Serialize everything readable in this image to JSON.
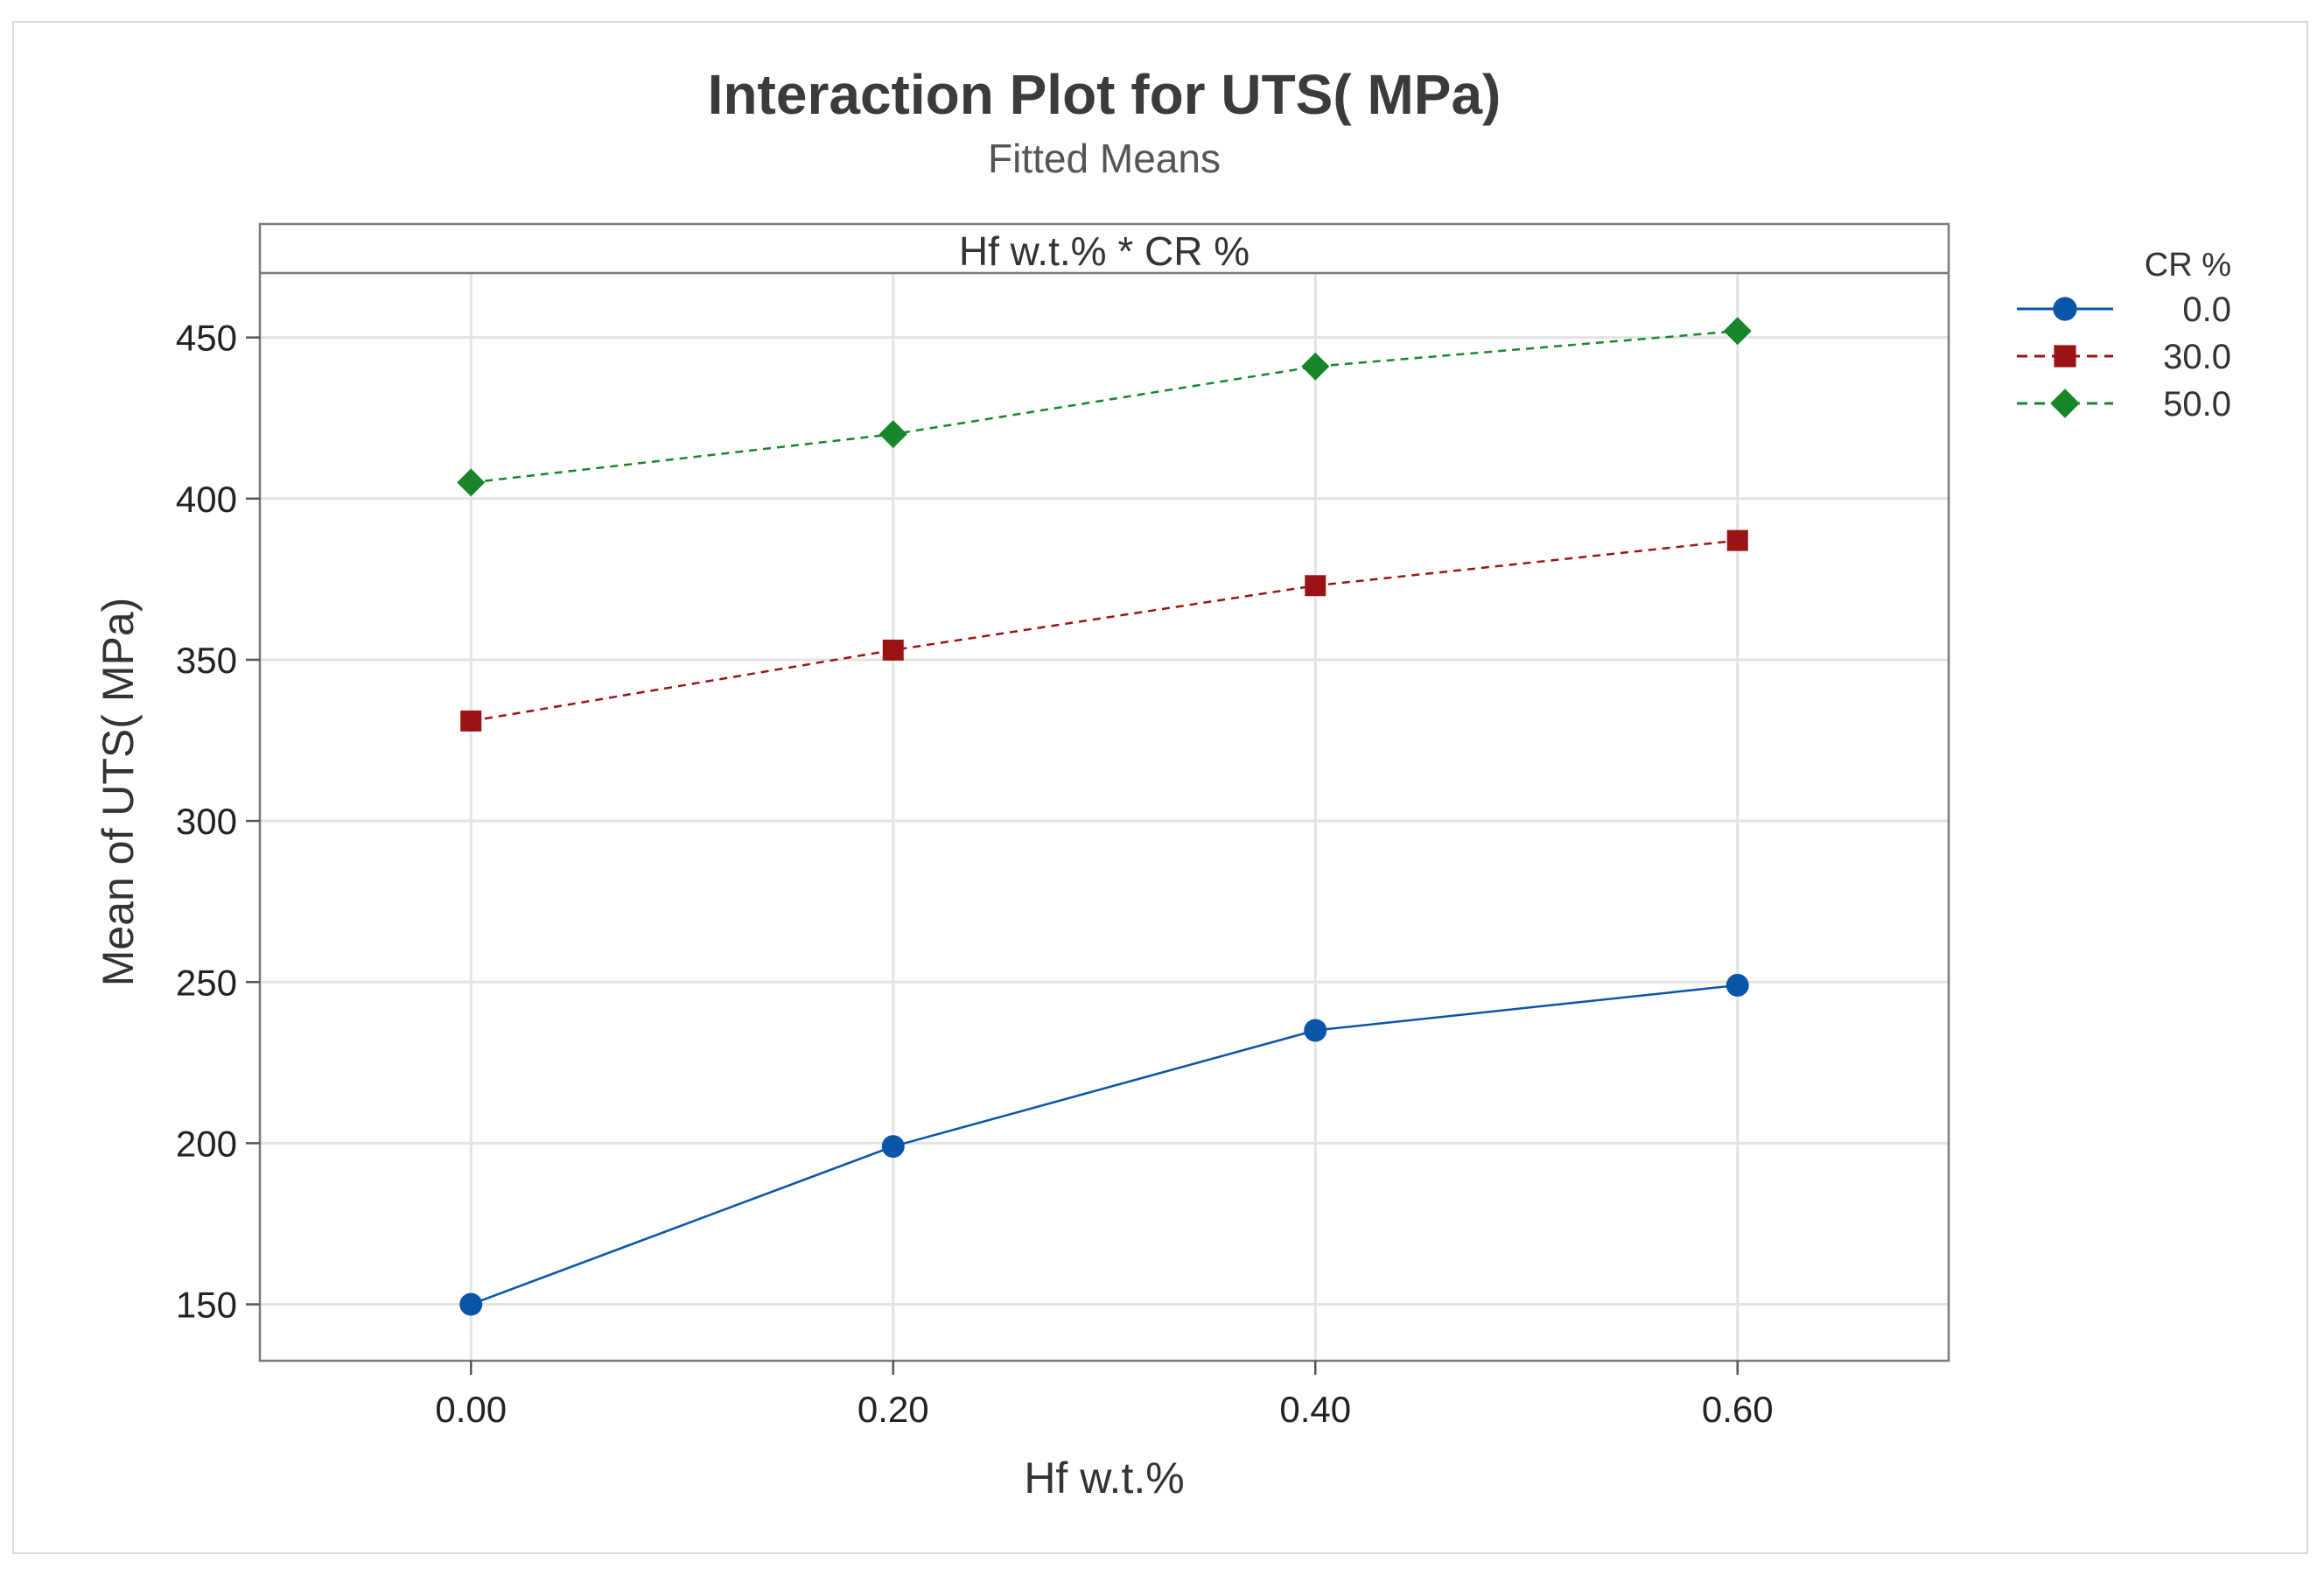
{
  "chart_data": {
    "type": "line",
    "title": "Interaction Plot for UTS( MPa)",
    "subtitle": "Fitted Means",
    "panel_label": "Hf w.t.% * CR %",
    "xlabel": "Hf w.t.%",
    "ylabel": "Mean of UTS( MPa)",
    "x": [
      0.0,
      0.2,
      0.4,
      0.6
    ],
    "x_tick_labels": [
      "0.00",
      "0.20",
      "0.40",
      "0.60"
    ],
    "xlim": [
      -0.1,
      0.7
    ],
    "y_ticks": [
      150,
      200,
      250,
      300,
      350,
      400,
      450
    ],
    "ylim": [
      132.5,
      470
    ],
    "grid": true,
    "legend": {
      "title": "CR %",
      "placement": "top-right-outside"
    },
    "series": [
      {
        "name": "0.0",
        "values": [
          150,
          199,
          235,
          249
        ],
        "color": "#0a55a8",
        "marker": "circle",
        "line": "solid"
      },
      {
        "name": "30.0",
        "values": [
          331,
          353,
          373,
          387
        ],
        "color": "#9b1414",
        "marker": "square",
        "line": "dashed"
      },
      {
        "name": "50.0",
        "values": [
          405,
          420,
          441,
          452
        ],
        "color": "#17862a",
        "marker": "diamond",
        "line": "dashed"
      }
    ]
  }
}
